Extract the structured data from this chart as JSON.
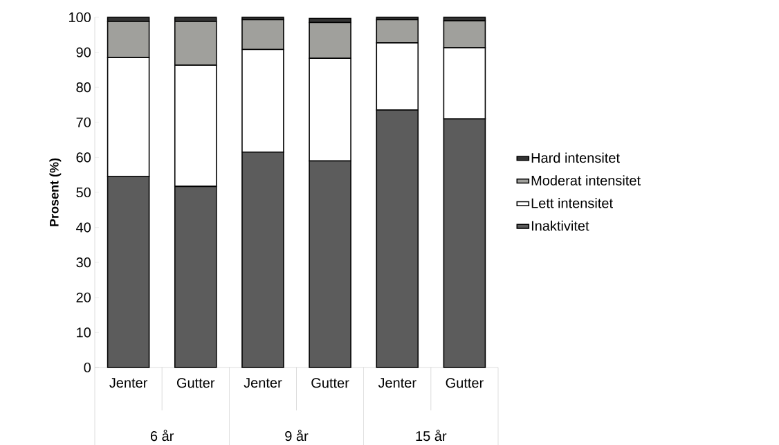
{
  "chart_data": {
    "type": "bar",
    "stacked": true,
    "ylabel": "Prosent (%)",
    "categories": [
      "Jenter",
      "Gutter",
      "Jenter",
      "Gutter",
      "Jenter",
      "Gutter"
    ],
    "annotations": [
      "6 år",
      "9 år",
      "15 år"
    ],
    "series": [
      {
        "name": "Inaktivitet",
        "color": "#5c5c5c",
        "values": [
          54.5,
          51.7,
          61.5,
          59,
          73.5,
          71
        ]
      },
      {
        "name": "Lett intensitet",
        "color": "#ffffff",
        "values": [
          34,
          34.6,
          29.3,
          29.3,
          19.2,
          20.3
        ]
      },
      {
        "name": "Moderat intensitet",
        "color": "#a0a09c",
        "values": [
          10.3,
          12.5,
          8.5,
          10.2,
          6.6,
          7.7
        ]
      },
      {
        "name": "Hard intensitet",
        "color": "#333333",
        "values": [
          1.2,
          1.2,
          0.7,
          1.2,
          0.7,
          1.0
        ]
      }
    ],
    "ylim": [
      0,
      100
    ],
    "yticks": [
      0,
      10,
      20,
      30,
      40,
      50,
      60,
      70,
      80,
      90,
      100
    ],
    "grid": false,
    "legend": "right"
  }
}
